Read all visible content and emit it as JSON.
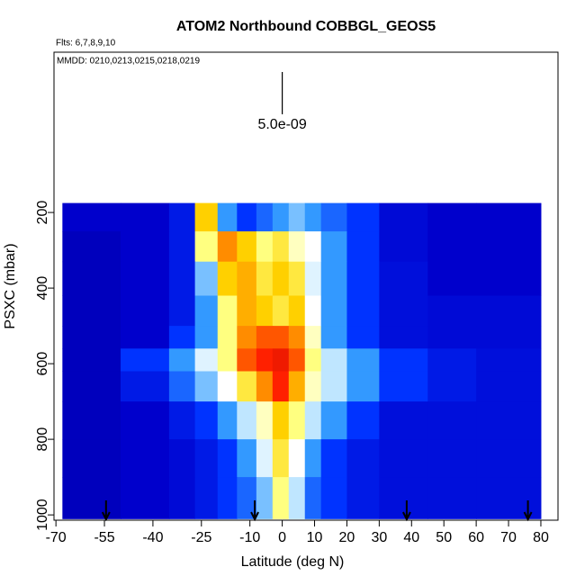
{
  "chart_data": {
    "type": "heatmap",
    "title": "ATOM2 Northbound COBBGL_GEOS5",
    "subtitle": "Flts: 6,7,8,9,10",
    "annotation": "MMDD: 0210,0213,0215,0218,0219",
    "scale_label": "5.0e-09",
    "xlabel": "Latitude (deg N)",
    "ylabel": "PSXC (mbar)",
    "xlim": [
      -70.6,
      85.3
    ],
    "ylim": [
      1014,
      -224
    ],
    "xticks": [
      -70,
      -55,
      -40,
      -25,
      -10,
      0,
      10,
      20,
      30,
      40,
      50,
      60,
      70,
      80
    ],
    "yticks": [
      200,
      400,
      600,
      800,
      1000
    ],
    "x_edges": [
      -68,
      -50,
      -35,
      -27,
      -20,
      -14,
      -8,
      -3,
      2,
      7,
      12,
      20,
      30,
      45,
      60,
      80
    ],
    "y_edges": [
      175,
      250,
      330,
      420,
      500,
      560,
      620,
      700,
      800,
      900,
      1010
    ],
    "zlim": [
      0,
      10
    ],
    "colormap": [
      "#000080",
      "#0000cc",
      "#0033ff",
      "#3399ff",
      "#bfe6ff",
      "#ffffff",
      "#ffff80",
      "#ffd000",
      "#ff8c00",
      "#ff2000",
      "#b00000"
    ],
    "z": [
      [
        1,
        1,
        1.5,
        7,
        3,
        2,
        2.5,
        3,
        3.5,
        3,
        2.5,
        2,
        1.2,
        1,
        1
      ],
      [
        0.8,
        1,
        1.5,
        6,
        8,
        7,
        6,
        6.5,
        5.5,
        5,
        3,
        2,
        1.2,
        1,
        1
      ],
      [
        0.8,
        1,
        1.5,
        3.5,
        7,
        7.5,
        6.5,
        7,
        6.5,
        4.5,
        3,
        2,
        1.3,
        1,
        1
      ],
      [
        0.8,
        1,
        1.5,
        3,
        6,
        7.5,
        7,
        6.5,
        7,
        5,
        3,
        2,
        1.3,
        1.2,
        1.2
      ],
      [
        0.8,
        1,
        2,
        3,
        6,
        8,
        8.5,
        8.5,
        8,
        5.5,
        3,
        2,
        1.3,
        1.2,
        1.2
      ],
      [
        0.8,
        2,
        3,
        4.5,
        6,
        8.5,
        9,
        9.2,
        8.5,
        6,
        4,
        3,
        2,
        1.5,
        1.3
      ],
      [
        0.8,
        1.5,
        2.5,
        3.5,
        5,
        6.5,
        8,
        9,
        7.5,
        5.5,
        4,
        3,
        2,
        1.5,
        1.3
      ],
      [
        0.8,
        1,
        1.5,
        2,
        3,
        4,
        5.5,
        7,
        6,
        4,
        3,
        2,
        1.3,
        1.3,
        1.3
      ],
      [
        0.8,
        1,
        1.2,
        1.5,
        2,
        3,
        4.5,
        6.5,
        5,
        3,
        2,
        1.5,
        1.3,
        1.3,
        1.3
      ],
      [
        0.8,
        1,
        1.2,
        1.5,
        2,
        2.5,
        3.5,
        6,
        4,
        2.5,
        2,
        1.5,
        1.3,
        1.3,
        1.3
      ]
    ],
    "arrows_lat": [
      -54.5,
      -8.5,
      38.5,
      76
    ]
  }
}
